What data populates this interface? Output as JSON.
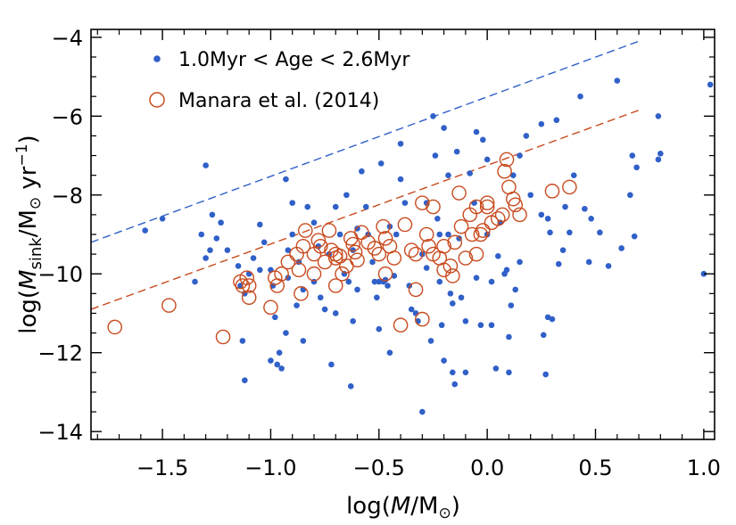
{
  "chart_data": {
    "type": "scatter",
    "xlabel": "log(M/M⊙)",
    "ylabel": "log(Ṁsink/M⊙ yr⁻¹)",
    "xlim": [
      -1.83,
      1.05
    ],
    "ylim": [
      -14.2,
      -3.8
    ],
    "x_ticks": [
      -1.5,
      -1.0,
      -0.5,
      0.0,
      0.5,
      1.0
    ],
    "x_tick_labels": [
      "−1.5",
      "−1.0",
      "−0.5",
      "0.0",
      "0.5",
      "1.0"
    ],
    "y_ticks": [
      -14,
      -12,
      -10,
      -8,
      -6,
      -4
    ],
    "y_tick_labels": [
      "−14",
      "−12",
      "−10",
      "−8",
      "−6",
      "−4"
    ],
    "x_label_parts": {
      "prefix": "log(",
      "var": "M",
      "sep": "/M",
      "suffix": ")"
    },
    "y_label_parts": {
      "prefix": "log(",
      "var": "M",
      "sub": "sink",
      "sep": "/M",
      "yr": " yr",
      "exp": "−1",
      "suffix": ")"
    },
    "grid": false,
    "legend_position": "top-left",
    "colors": {
      "sim": "#3060c8",
      "manara": "#c84a1e"
    },
    "series": [
      {
        "name": "1.0Myr < Age < 2.6Myr",
        "marker": "filled-circle",
        "color": "#3060c8",
        "points": [
          [
            -1.58,
            -8.9
          ],
          [
            -1.5,
            -8.6
          ],
          [
            -1.35,
            -10.2
          ],
          [
            -1.3,
            -7.25
          ],
          [
            -1.32,
            -9.0
          ],
          [
            -1.3,
            -9.6
          ],
          [
            -1.28,
            -9.4
          ],
          [
            -1.27,
            -8.5
          ],
          [
            -1.25,
            -9.1
          ],
          [
            -1.2,
            -9.4
          ],
          [
            -1.23,
            -8.7
          ],
          [
            -1.15,
            -9.8
          ],
          [
            -1.14,
            -10.3
          ],
          [
            -1.12,
            -10.5
          ],
          [
            -1.1,
            -10.0
          ],
          [
            -1.08,
            -9.6
          ],
          [
            -1.05,
            -8.75
          ],
          [
            -1.05,
            -9.9
          ],
          [
            -1.13,
            -11.7
          ],
          [
            -1.12,
            -12.7
          ],
          [
            -1.03,
            -9.2
          ],
          [
            -1.0,
            -9.9
          ],
          [
            -0.99,
            -10.3
          ],
          [
            -0.98,
            -11.1
          ],
          [
            -0.97,
            -12.3
          ],
          [
            -1.0,
            -12.2
          ],
          [
            -0.96,
            -12.0
          ],
          [
            -0.95,
            -12.4
          ],
          [
            -0.93,
            -11.5
          ],
          [
            -0.92,
            -10.1
          ],
          [
            -0.92,
            -9.4
          ],
          [
            -0.9,
            -9.0
          ],
          [
            -0.9,
            -8.2
          ],
          [
            -0.93,
            -7.6
          ],
          [
            -0.88,
            -10.8
          ],
          [
            -0.87,
            -9.7
          ],
          [
            -0.85,
            -10.4
          ],
          [
            -0.85,
            -11.7
          ],
          [
            -0.83,
            -8.3
          ],
          [
            -0.8,
            -8.7
          ],
          [
            -0.8,
            -10.2
          ],
          [
            -0.78,
            -9.3
          ],
          [
            -0.77,
            -10.6
          ],
          [
            -0.75,
            -10.9
          ],
          [
            -0.73,
            -9.5
          ],
          [
            -0.72,
            -12.3
          ],
          [
            -0.7,
            -8.3
          ],
          [
            -0.7,
            -11.0
          ],
          [
            -0.68,
            -9.0
          ],
          [
            -0.65,
            -8.0
          ],
          [
            -0.66,
            -10.0
          ],
          [
            -0.64,
            -10.2
          ],
          [
            -0.62,
            -9.4
          ],
          [
            -0.6,
            -8.85
          ],
          [
            -0.6,
            -10.4
          ],
          [
            -0.62,
            -11.2
          ],
          [
            -0.63,
            -12.85
          ],
          [
            -0.58,
            -7.4
          ],
          [
            -0.56,
            -8.3
          ],
          [
            -0.55,
            -9.0
          ],
          [
            -0.53,
            -9.7
          ],
          [
            -0.52,
            -10.2
          ],
          [
            -0.51,
            -10.6
          ],
          [
            -0.5,
            -10.2
          ],
          [
            -0.5,
            -11.4
          ],
          [
            -0.49,
            -7.2
          ],
          [
            -0.48,
            -10.2
          ],
          [
            -0.47,
            -10.15
          ],
          [
            -0.46,
            -10.3
          ],
          [
            -0.45,
            -8.8
          ],
          [
            -0.45,
            -12.0
          ],
          [
            -0.43,
            -10.05
          ],
          [
            -0.42,
            -9.0
          ],
          [
            -0.4,
            -6.7
          ],
          [
            -0.4,
            -7.6
          ],
          [
            -0.38,
            -8.2
          ],
          [
            -0.36,
            -10.3
          ],
          [
            -0.35,
            -10.9
          ],
          [
            -0.33,
            -11.0
          ],
          [
            -0.32,
            -11.2
          ],
          [
            -0.3,
            -13.5
          ],
          [
            -0.3,
            -9.5
          ],
          [
            -0.28,
            -8.2
          ],
          [
            -0.28,
            -9.85
          ],
          [
            -0.26,
            -11.7
          ],
          [
            -0.25,
            -6.0
          ],
          [
            -0.24,
            -7.0
          ],
          [
            -0.23,
            -8.6
          ],
          [
            -0.22,
            -9.0
          ],
          [
            -0.22,
            -10.2
          ],
          [
            -0.21,
            -11.3
          ],
          [
            -0.2,
            -12.2
          ],
          [
            -0.2,
            -6.3
          ],
          [
            -0.18,
            -7.5
          ],
          [
            -0.18,
            -9.0
          ],
          [
            -0.17,
            -10.5
          ],
          [
            -0.16,
            -10.75
          ],
          [
            -0.16,
            -12.5
          ],
          [
            -0.15,
            -12.8
          ],
          [
            -0.14,
            -6.9
          ],
          [
            -0.13,
            -9.1
          ],
          [
            -0.12,
            -10.6
          ],
          [
            -0.1,
            -11.2
          ],
          [
            -0.1,
            -12.5
          ],
          [
            -0.08,
            -7.45
          ],
          [
            -0.06,
            -8.2
          ],
          [
            -0.05,
            -6.4
          ],
          [
            -0.05,
            -10.1
          ],
          [
            -0.03,
            -11.3
          ],
          [
            -0.02,
            -6.6
          ],
          [
            0.0,
            -7.1
          ],
          [
            0.0,
            -9.0
          ],
          [
            0.02,
            -10.2
          ],
          [
            0.02,
            -11.3
          ],
          [
            0.04,
            -12.4
          ],
          [
            0.05,
            -9.55
          ],
          [
            0.06,
            -8.7
          ],
          [
            0.08,
            -10.0
          ],
          [
            0.09,
            -9.9
          ],
          [
            0.1,
            -11.6
          ],
          [
            0.1,
            -12.5
          ],
          [
            0.11,
            -10.8
          ],
          [
            0.12,
            -7.5
          ],
          [
            0.13,
            -10.4
          ],
          [
            0.15,
            -7.0
          ],
          [
            0.15,
            -9.7
          ],
          [
            0.18,
            -6.5
          ],
          [
            0.2,
            -8.0
          ],
          [
            0.25,
            -6.2
          ],
          [
            0.25,
            -8.5
          ],
          [
            0.26,
            -11.55
          ],
          [
            0.27,
            -12.55
          ],
          [
            0.28,
            -11.1
          ],
          [
            0.28,
            -8.6
          ],
          [
            0.29,
            -8.95
          ],
          [
            0.3,
            -11.15
          ],
          [
            0.32,
            -6.1
          ],
          [
            0.33,
            -9.75
          ],
          [
            0.35,
            -9.4
          ],
          [
            0.36,
            -8.3
          ],
          [
            0.38,
            -8.95
          ],
          [
            0.4,
            -7.5
          ],
          [
            0.43,
            -5.5
          ],
          [
            0.45,
            -8.35
          ],
          [
            0.47,
            -9.7
          ],
          [
            0.48,
            -8.6
          ],
          [
            0.52,
            -8.95
          ],
          [
            0.56,
            -9.8
          ],
          [
            0.6,
            -5.1
          ],
          [
            0.62,
            -9.35
          ],
          [
            0.66,
            -8.0
          ],
          [
            0.67,
            -7.0
          ],
          [
            0.68,
            -9.05
          ],
          [
            0.69,
            -7.3
          ],
          [
            0.79,
            -6.0
          ],
          [
            0.79,
            -7.1
          ],
          [
            0.8,
            -6.95
          ],
          [
            1.0,
            -10.0
          ],
          [
            1.03,
            -5.2
          ]
        ]
      },
      {
        "name": "Manara et al. (2014)",
        "marker": "open-circle",
        "color": "#c84a1e",
        "points": [
          [
            -1.72,
            -11.35
          ],
          [
            -1.47,
            -10.8
          ],
          [
            -1.22,
            -11.6
          ],
          [
            -1.14,
            -10.2
          ],
          [
            -1.13,
            -10.3
          ],
          [
            -1.11,
            -10.1
          ],
          [
            -1.1,
            -10.3
          ],
          [
            -1.1,
            -10.6
          ],
          [
            -1.0,
            -10.85
          ],
          [
            -0.98,
            -10.1
          ],
          [
            -0.97,
            -10.3
          ],
          [
            -0.95,
            -10.0
          ],
          [
            -0.92,
            -9.7
          ],
          [
            -0.88,
            -9.5
          ],
          [
            -0.87,
            -9.9
          ],
          [
            -0.86,
            -10.5
          ],
          [
            -0.85,
            -9.3
          ],
          [
            -0.84,
            -8.9
          ],
          [
            -0.8,
            -10.0
          ],
          [
            -0.8,
            -9.5
          ],
          [
            -0.78,
            -9.15
          ],
          [
            -0.77,
            -9.3
          ],
          [
            -0.75,
            -9.7
          ],
          [
            -0.73,
            -8.9
          ],
          [
            -0.72,
            -9.4
          ],
          [
            -0.7,
            -9.5
          ],
          [
            -0.7,
            -9.6
          ],
          [
            -0.7,
            -10.3
          ],
          [
            -0.68,
            -9.55
          ],
          [
            -0.67,
            -10.0
          ],
          [
            -0.65,
            -9.8
          ],
          [
            -0.63,
            -9.1
          ],
          [
            -0.62,
            -9.25
          ],
          [
            -0.61,
            -9.45
          ],
          [
            -0.6,
            -9.65
          ],
          [
            -0.58,
            -8.95
          ],
          [
            -0.55,
            -9.2
          ],
          [
            -0.52,
            -9.35
          ],
          [
            -0.5,
            -9.5
          ],
          [
            -0.48,
            -8.8
          ],
          [
            -0.47,
            -9.1
          ],
          [
            -0.47,
            -10.0
          ],
          [
            -0.45,
            -9.3
          ],
          [
            -0.43,
            -9.6
          ],
          [
            -0.4,
            -11.3
          ],
          [
            -0.38,
            -8.75
          ],
          [
            -0.35,
            -9.4
          ],
          [
            -0.33,
            -9.5
          ],
          [
            -0.33,
            -10.4
          ],
          [
            -0.3,
            -11.15
          ],
          [
            -0.3,
            -8.2
          ],
          [
            -0.28,
            -9.0
          ],
          [
            -0.27,
            -9.3
          ],
          [
            -0.25,
            -8.3
          ],
          [
            -0.25,
            -9.5
          ],
          [
            -0.22,
            -9.6
          ],
          [
            -0.2,
            -9.3
          ],
          [
            -0.2,
            -9.9
          ],
          [
            -0.17,
            -9.8
          ],
          [
            -0.16,
            -10.05
          ],
          [
            -0.15,
            -9.2
          ],
          [
            -0.13,
            -7.95
          ],
          [
            -0.12,
            -8.8
          ],
          [
            -0.1,
            -9.6
          ],
          [
            -0.08,
            -8.5
          ],
          [
            -0.07,
            -9.0
          ],
          [
            -0.05,
            -8.3
          ],
          [
            -0.05,
            -9.5
          ],
          [
            -0.03,
            -9.0
          ],
          [
            -0.02,
            -8.9
          ],
          [
            0.0,
            -8.2
          ],
          [
            0.0,
            -8.3
          ],
          [
            0.02,
            -8.7
          ],
          [
            0.05,
            -8.6
          ],
          [
            0.07,
            -8.5
          ],
          [
            0.08,
            -7.4
          ],
          [
            0.09,
            -7.1
          ],
          [
            0.1,
            -7.8
          ],
          [
            0.12,
            -8.1
          ],
          [
            0.13,
            -8.25
          ],
          [
            0.15,
            -8.5
          ],
          [
            0.3,
            -7.9
          ],
          [
            0.38,
            -7.8
          ]
        ]
      }
    ],
    "fit_lines": [
      {
        "series": "1.0Myr < Age < 2.6Myr",
        "style": "dashed",
        "color": "#3060c8",
        "x": [
          -1.83,
          0.7
        ],
        "y": [
          -9.2,
          -4.1
        ]
      },
      {
        "series": "Manara et al. (2014)",
        "style": "dashed",
        "color": "#c84a1e",
        "x": [
          -1.83,
          0.7
        ],
        "y": [
          -10.9,
          -5.85
        ]
      }
    ]
  }
}
